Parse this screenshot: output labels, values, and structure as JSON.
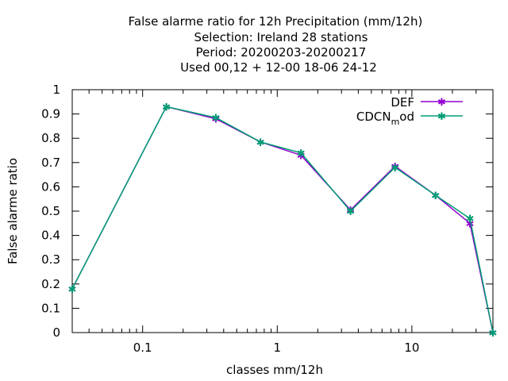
{
  "chart_data": {
    "type": "line",
    "title_lines": [
      "False alarme ratio  for 12h Precipitation (mm/12h)",
      "Selection: Ireland      28 stations",
      "Period: 20200203-20200217",
      "Used  00,12  + 12-00 18-06 24-12"
    ],
    "xlabel": "classes mm/12h",
    "ylabel": "False alarme ratio",
    "x_scale": "log",
    "xlim": [
      0.03,
      40
    ],
    "ylim": [
      0,
      1
    ],
    "x_ticks": [
      {
        "value": 0.1,
        "label": "0.1"
      },
      {
        "value": 1,
        "label": "1"
      },
      {
        "value": 10,
        "label": "10"
      }
    ],
    "y_ticks": [
      {
        "value": 0,
        "label": "0"
      },
      {
        "value": 0.1,
        "label": "0.1"
      },
      {
        "value": 0.2,
        "label": "0.2"
      },
      {
        "value": 0.3,
        "label": "0.3"
      },
      {
        "value": 0.4,
        "label": "0.4"
      },
      {
        "value": 0.5,
        "label": "0.5"
      },
      {
        "value": 0.6,
        "label": "0.6"
      },
      {
        "value": 0.7,
        "label": "0.7"
      },
      {
        "value": 0.8,
        "label": "0.8"
      },
      {
        "value": 0.9,
        "label": "0.9"
      },
      {
        "value": 1,
        "label": "1"
      }
    ],
    "grid": false,
    "legend_position": "top-right",
    "x": [
      0.03,
      0.15,
      0.35,
      0.75,
      1.5,
      3.5,
      7.5,
      15,
      27,
      40
    ],
    "series": [
      {
        "name": "DEF",
        "color": "#9400d3",
        "values": [
          0.18,
          0.93,
          0.88,
          0.785,
          0.73,
          0.505,
          0.685,
          0.565,
          0.45,
          0
        ]
      },
      {
        "name": "CDCN_mod",
        "legend_text": "CDCN",
        "legend_subscript": "m",
        "legend_suffix": "od",
        "color": "#009e73",
        "values": [
          0.18,
          0.93,
          0.885,
          0.785,
          0.74,
          0.5,
          0.68,
          0.565,
          0.47,
          0
        ]
      }
    ]
  }
}
